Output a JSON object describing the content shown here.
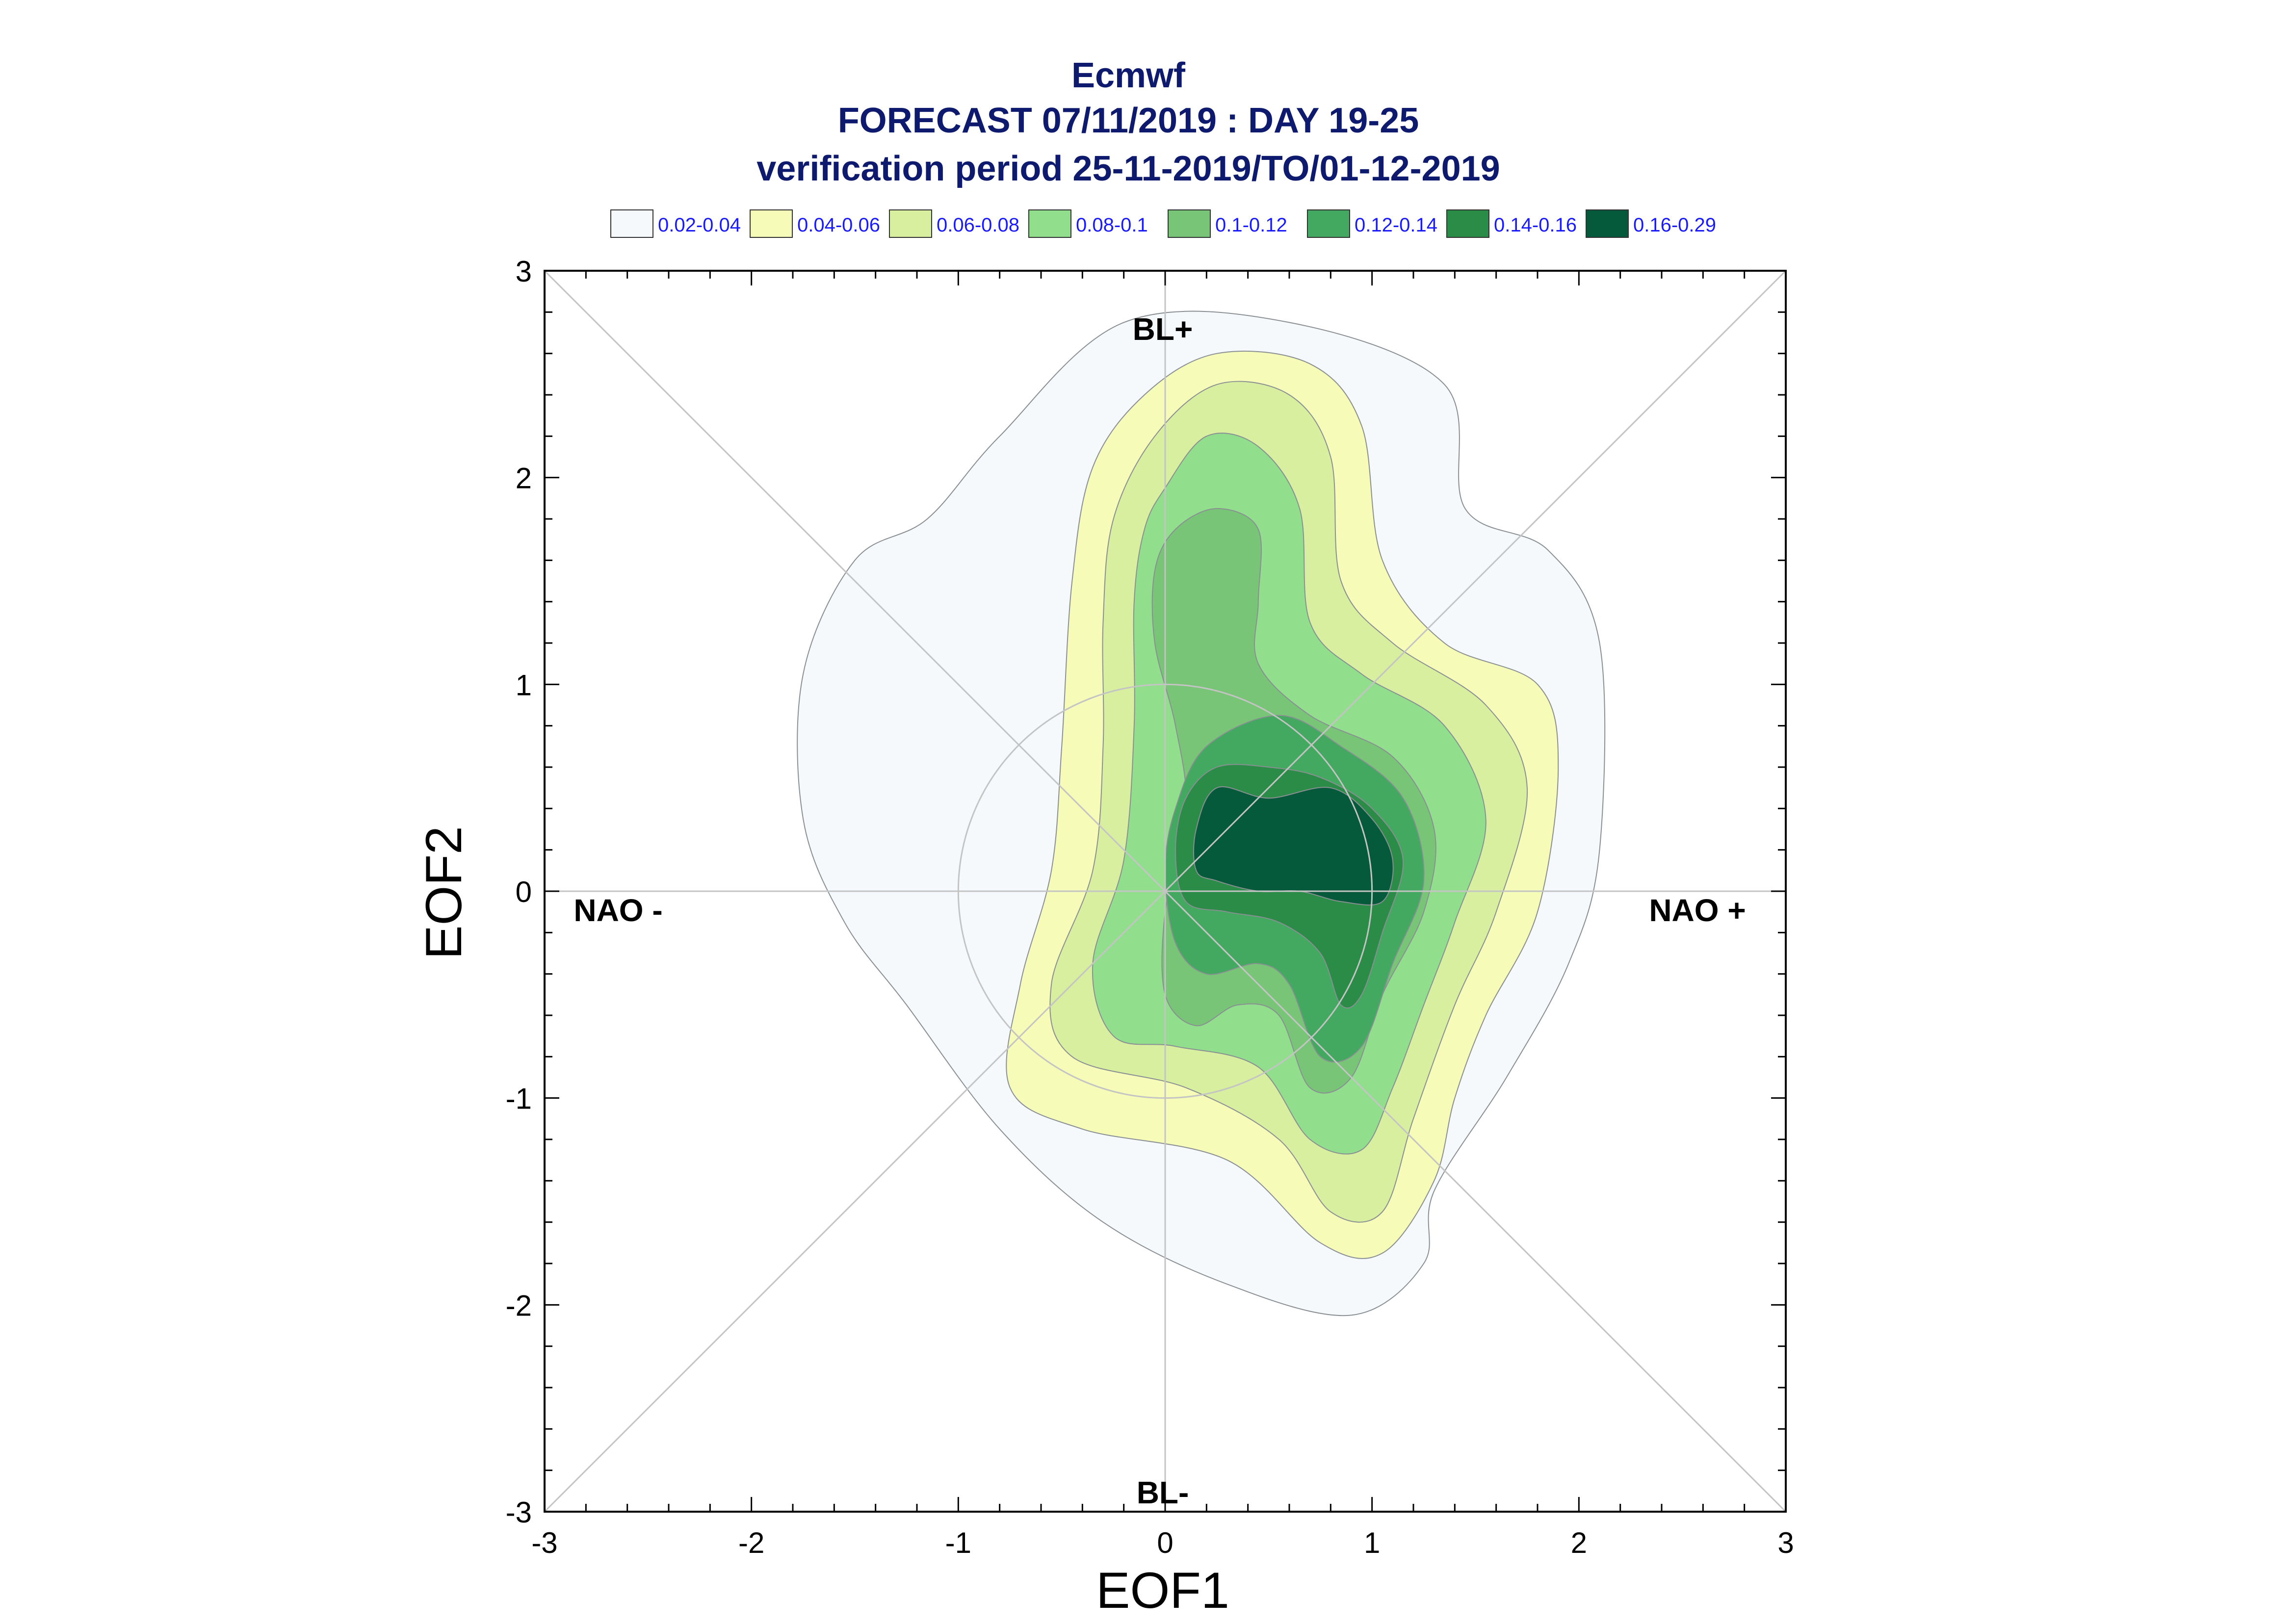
{
  "chart_data": {
    "type": "contour",
    "title": "Ecmwf",
    "subtitle": "FORECAST 07/11/2019 : DAY 19-25",
    "subtitle2": "verification period 25-11-2019/TO/01-12-2019",
    "xlabel": "EOF1",
    "ylabel": "EOF2",
    "xlim": [
      -3,
      3
    ],
    "ylim": [
      -3,
      3
    ],
    "xticks": [
      "-3",
      "-2",
      "-1",
      "0",
      "1",
      "2",
      "3"
    ],
    "yticks": [
      "-3",
      "-2",
      "-1",
      "0",
      "1",
      "2",
      "3"
    ],
    "grid": false,
    "legend_position": "top",
    "region_labels": {
      "bl_plus": "BL+",
      "bl_minus": "BL-",
      "nao_minus": "NAO -",
      "nao_plus": "NAO +"
    },
    "levels": [
      {
        "label": "0.02-0.04",
        "color": "#f5f9fc"
      },
      {
        "label": "0.04-0.06",
        "color": "#f6fbb8"
      },
      {
        "label": "0.06-0.08",
        "color": "#d9efa0"
      },
      {
        "label": "0.08-0.1",
        "color": "#91de8c"
      },
      {
        "label": "0.1-0.12",
        "color": "#78c577"
      },
      {
        "label": "0.12-0.14",
        "color": "#43a960"
      },
      {
        "label": "0.14-0.16",
        "color": "#2a8c46"
      },
      {
        "label": "0.16-0.29",
        "color": "#045a3a"
      }
    ],
    "contours": [
      [
        [
          -0.8,
          2.2
        ],
        [
          -0.2,
          2.75
        ],
        [
          0.6,
          2.75
        ],
        [
          1.35,
          2.45
        ],
        [
          1.45,
          1.85
        ],
        [
          1.85,
          1.65
        ],
        [
          2.1,
          1.2
        ],
        [
          2.1,
          0.2
        ],
        [
          1.95,
          -0.35
        ],
        [
          1.65,
          -0.9
        ],
        [
          1.3,
          -1.45
        ],
        [
          1.25,
          -1.8
        ],
        [
          0.9,
          -2.05
        ],
        [
          0.3,
          -1.9
        ],
        [
          -0.3,
          -1.6
        ],
        [
          -0.8,
          -1.15
        ],
        [
          -1.25,
          -0.55
        ],
        [
          -1.55,
          -0.15
        ],
        [
          -1.75,
          0.35
        ],
        [
          -1.75,
          1.05
        ],
        [
          -1.5,
          1.6
        ],
        [
          -1.15,
          1.8
        ],
        [
          -0.8,
          2.2
        ]
      ],
      [
        [
          -0.1,
          2.4
        ],
        [
          0.25,
          2.6
        ],
        [
          0.7,
          2.55
        ],
        [
          0.95,
          2.25
        ],
        [
          1.05,
          1.6
        ],
        [
          1.35,
          1.2
        ],
        [
          1.8,
          1.0
        ],
        [
          1.9,
          0.6
        ],
        [
          1.8,
          -0.1
        ],
        [
          1.55,
          -0.6
        ],
        [
          1.4,
          -1.0
        ],
        [
          1.3,
          -1.4
        ],
        [
          1.05,
          -1.75
        ],
        [
          0.75,
          -1.7
        ],
        [
          0.3,
          -1.3
        ],
        [
          -0.4,
          -1.15
        ],
        [
          -0.75,
          -0.95
        ],
        [
          -0.7,
          -0.45
        ],
        [
          -0.55,
          0.1
        ],
        [
          -0.5,
          0.7
        ],
        [
          -0.45,
          1.5
        ],
        [
          -0.35,
          2.05
        ],
        [
          -0.1,
          2.4
        ]
      ],
      [
        [
          -0.05,
          2.2
        ],
        [
          0.25,
          2.45
        ],
        [
          0.6,
          2.4
        ],
        [
          0.8,
          2.1
        ],
        [
          0.85,
          1.5
        ],
        [
          1.1,
          1.2
        ],
        [
          1.55,
          0.9
        ],
        [
          1.75,
          0.5
        ],
        [
          1.6,
          -0.1
        ],
        [
          1.4,
          -0.55
        ],
        [
          1.2,
          -1.1
        ],
        [
          1.05,
          -1.55
        ],
        [
          0.8,
          -1.55
        ],
        [
          0.55,
          -1.2
        ],
        [
          0.1,
          -0.95
        ],
        [
          -0.45,
          -0.8
        ],
        [
          -0.55,
          -0.45
        ],
        [
          -0.35,
          0.1
        ],
        [
          -0.3,
          0.7
        ],
        [
          -0.3,
          1.3
        ],
        [
          -0.25,
          1.8
        ],
        [
          -0.05,
          2.2
        ]
      ],
      [
        [
          0.0,
          1.95
        ],
        [
          0.2,
          2.2
        ],
        [
          0.45,
          2.15
        ],
        [
          0.65,
          1.85
        ],
        [
          0.7,
          1.3
        ],
        [
          0.95,
          1.05
        ],
        [
          1.35,
          0.8
        ],
        [
          1.55,
          0.35
        ],
        [
          1.4,
          -0.15
        ],
        [
          1.25,
          -0.55
        ],
        [
          1.1,
          -0.95
        ],
        [
          0.95,
          -1.25
        ],
        [
          0.7,
          -1.2
        ],
        [
          0.45,
          -0.85
        ],
        [
          0.05,
          -0.75
        ],
        [
          -0.25,
          -0.7
        ],
        [
          -0.35,
          -0.35
        ],
        [
          -0.2,
          0.15
        ],
        [
          -0.15,
          0.8
        ],
        [
          -0.15,
          1.4
        ],
        [
          -0.1,
          1.75
        ],
        [
          0.0,
          1.95
        ]
      ],
      [
        [
          0.05,
          1.75
        ],
        [
          0.25,
          1.85
        ],
        [
          0.45,
          1.75
        ],
        [
          0.45,
          1.4
        ],
        [
          0.45,
          1.1
        ],
        [
          0.7,
          0.85
        ],
        [
          1.1,
          0.65
        ],
        [
          1.3,
          0.3
        ],
        [
          1.25,
          -0.1
        ],
        [
          1.05,
          -0.5
        ],
        [
          0.9,
          -0.9
        ],
        [
          0.7,
          -0.95
        ],
        [
          0.55,
          -0.6
        ],
        [
          0.35,
          -0.55
        ],
        [
          0.15,
          -0.65
        ],
        [
          0.0,
          -0.5
        ],
        [
          0.0,
          -0.1
        ],
        [
          0.1,
          0.4
        ],
        [
          0.05,
          0.8
        ],
        [
          -0.05,
          1.2
        ],
        [
          -0.05,
          1.55
        ],
        [
          0.05,
          1.75
        ]
      ],
      [
        [
          0.2,
          0.7
        ],
        [
          0.55,
          0.85
        ],
        [
          0.85,
          0.7
        ],
        [
          1.15,
          0.45
        ],
        [
          1.25,
          0.05
        ],
        [
          1.1,
          -0.35
        ],
        [
          0.95,
          -0.75
        ],
        [
          0.75,
          -0.8
        ],
        [
          0.6,
          -0.45
        ],
        [
          0.45,
          -0.35
        ],
        [
          0.2,
          -0.4
        ],
        [
          0.05,
          -0.25
        ],
        [
          0.0,
          0.1
        ],
        [
          0.05,
          0.4
        ],
        [
          0.2,
          0.7
        ]
      ],
      [
        [
          0.25,
          0.6
        ],
        [
          0.5,
          0.6
        ],
        [
          0.75,
          0.55
        ],
        [
          1.0,
          0.4
        ],
        [
          1.15,
          0.15
        ],
        [
          1.05,
          -0.2
        ],
        [
          0.95,
          -0.5
        ],
        [
          0.85,
          -0.55
        ],
        [
          0.75,
          -0.3
        ],
        [
          0.55,
          -0.15
        ],
        [
          0.3,
          -0.1
        ],
        [
          0.1,
          -0.05
        ],
        [
          0.05,
          0.2
        ],
        [
          0.1,
          0.45
        ],
        [
          0.25,
          0.6
        ]
      ],
      [
        [
          0.25,
          0.5
        ],
        [
          0.5,
          0.45
        ],
        [
          0.8,
          0.5
        ],
        [
          1.0,
          0.35
        ],
        [
          1.1,
          0.15
        ],
        [
          1.05,
          -0.05
        ],
        [
          0.85,
          -0.05
        ],
        [
          0.65,
          0.0
        ],
        [
          0.45,
          0.0
        ],
        [
          0.25,
          0.05
        ],
        [
          0.15,
          0.1
        ],
        [
          0.15,
          0.3
        ],
        [
          0.25,
          0.5
        ]
      ]
    ]
  }
}
